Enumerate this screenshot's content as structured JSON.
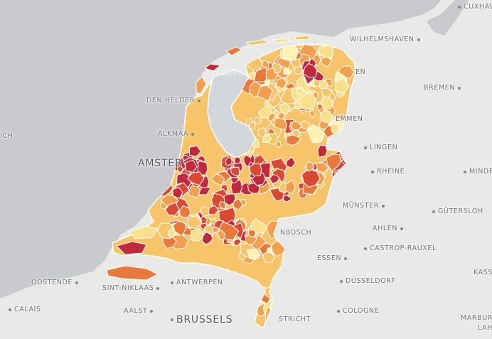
{
  "map": {
    "colors": {
      "sea": "#c8cacd",
      "land": "#e9e9e7",
      "lake": "#d3d6da",
      "choropleth": [
        "#fff2b3",
        "#fbe08c",
        "#f8c46a",
        "#f2a04e",
        "#e8793c",
        "#d84a34",
        "#c02a3c"
      ]
    },
    "labels": [
      {
        "id": "cuxhaven",
        "text": "CUXHAVEN"
      },
      {
        "id": "wilhelmshaven",
        "text": "WILHELMSHAVEN"
      },
      {
        "id": "emden",
        "text": "EN"
      },
      {
        "id": "bremen",
        "text": "BREMEN"
      },
      {
        "id": "den-helder",
        "text": "DEN HELDER"
      },
      {
        "id": "wadden",
        "text": "Wadden"
      },
      {
        "id": "alkmaar",
        "text": "ALKMAA"
      },
      {
        "id": "ich",
        "text": "ICH"
      },
      {
        "id": "meppen",
        "text": "EMMEN"
      },
      {
        "id": "lingen",
        "text": "LINGEN"
      },
      {
        "id": "amsterdam",
        "text": "AMSTER"
      },
      {
        "id": "rheine",
        "text": "RHEINE"
      },
      {
        "id": "minden",
        "text": "MINDE"
      },
      {
        "id": "munster",
        "text": "MÜNSTER"
      },
      {
        "id": "gutersloh",
        "text": "GÜTERSLOH"
      },
      {
        "id": "ahlen",
        "text": "AHLEN"
      },
      {
        "id": "bosch",
        "text": "NBOSCH"
      },
      {
        "id": "castrop",
        "text": "CASTROP-RAUXEL"
      },
      {
        "id": "essen",
        "text": "ESSEN"
      },
      {
        "id": "kassel",
        "text": "KASS"
      },
      {
        "id": "oostende",
        "text": "OOSTENDE"
      },
      {
        "id": "sint-niklaas",
        "text": "SINT-NIKLAAS"
      },
      {
        "id": "antwerpen",
        "text": "ANTWERPEN"
      },
      {
        "id": "dusseldorf",
        "text": "DUSSELDORF"
      },
      {
        "id": "calais",
        "text": "CALAIS"
      },
      {
        "id": "aalst",
        "text": "AALST"
      },
      {
        "id": "brussels",
        "text": "BRUSSELS"
      },
      {
        "id": "maastricht",
        "text": "STRICHT"
      },
      {
        "id": "cologne",
        "text": "COLOGNE"
      },
      {
        "id": "marburg",
        "text": "MARBURG"
      },
      {
        "id": "lahn",
        "text": "LAHN"
      }
    ]
  }
}
